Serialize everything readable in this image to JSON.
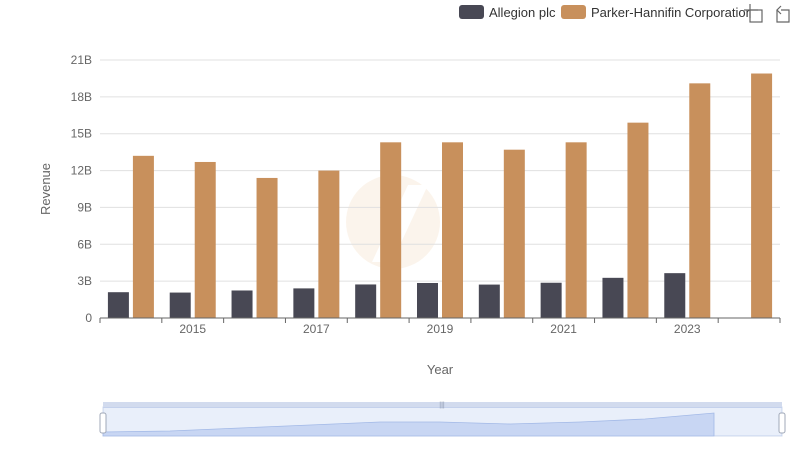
{
  "toolbar": {
    "icons": [
      "zoom-select-icon",
      "zoom-reset-icon"
    ]
  },
  "chart_data": {
    "type": "bar",
    "xlabel": "Year",
    "ylabel": "Revenue",
    "categories": [
      "2014",
      "2015",
      "2016",
      "2017",
      "2018",
      "2019",
      "2020",
      "2021",
      "2022",
      "2023",
      "2024"
    ],
    "x_tick_labels": [
      "2015",
      "2017",
      "2019",
      "2021",
      "2023"
    ],
    "y_tick_labels": [
      "0",
      "3B",
      "6B",
      "9B",
      "12B",
      "15B",
      "18B",
      "21B"
    ],
    "ylim": [
      0,
      21
    ],
    "y_unit": "billions",
    "grid": true,
    "legend_position": "top-right",
    "series": [
      {
        "name": "Allegion plc",
        "color": "#484854",
        "values": [
          2.1,
          2.07,
          2.24,
          2.41,
          2.73,
          2.85,
          2.72,
          2.87,
          3.27,
          3.65,
          null
        ]
      },
      {
        "name": "Parker-Hannifin Corporation",
        "color": "#c8905c",
        "values": [
          13.2,
          12.7,
          11.4,
          12.0,
          14.3,
          14.3,
          13.7,
          14.3,
          15.9,
          19.1,
          19.9
        ]
      }
    ]
  }
}
